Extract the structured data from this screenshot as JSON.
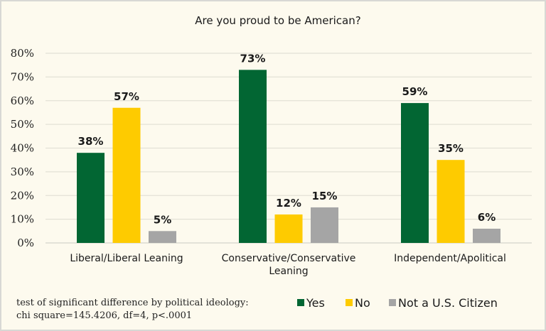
{
  "chart_data": {
    "type": "bar",
    "title": "Are you proud to be American?",
    "categories": [
      [
        "Liberal/Liberal Leaning"
      ],
      [
        "Conservative/Conservative",
        "Leaning"
      ],
      [
        "Independent/Apolitical"
      ]
    ],
    "series": [
      {
        "name": "Yes",
        "color": "#026633",
        "values": [
          38,
          73,
          59
        ],
        "labels": [
          "38%",
          "73%",
          "59%"
        ]
      },
      {
        "name": "No",
        "color": "#fecb00",
        "values": [
          57,
          12,
          35
        ],
        "labels": [
          "57%",
          "12%",
          "35%"
        ]
      },
      {
        "name": "Not a U.S. Citizen",
        "color": "#a5a5a5",
        "values": [
          5,
          15,
          6
        ],
        "labels": [
          "5%",
          "15%",
          "6%"
        ]
      }
    ],
    "ylim": [
      0,
      80
    ],
    "yticks": [
      "0%",
      "10%",
      "20%",
      "30%",
      "40%",
      "50%",
      "60%",
      "70%",
      "80%"
    ],
    "grid": true,
    "legend": "bottom-right",
    "xlabel": "",
    "ylabel": "",
    "note": [
      "test of significant difference by political ideology:",
      "chi square=145.4206, df=4, p<.0001"
    ]
  }
}
